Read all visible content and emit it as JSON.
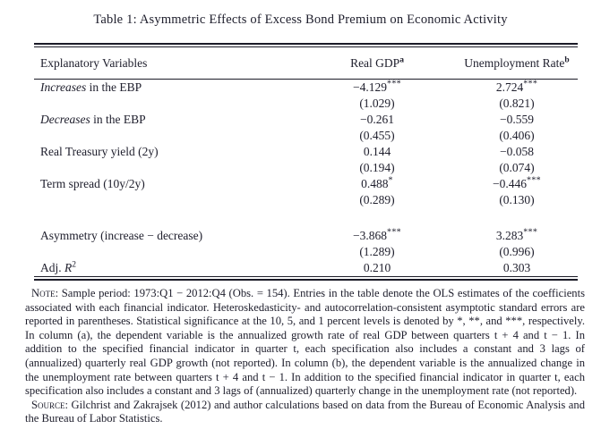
{
  "title": "Table 1: Asymmetric Effects of Excess Bond Premium on Economic Activity",
  "accent_colors": {
    "text": "#20202e",
    "rule": "#1b1b27",
    "background": "#ffffff"
  },
  "table": {
    "header": {
      "col0": "Explanatory Variables",
      "col1": "Real GDP",
      "col1_sup": "a",
      "col2": "Unemployment Rate",
      "col2_sup": "b"
    },
    "rows": [
      {
        "pre": "",
        "em": "Increases",
        "post": " in the EBP",
        "sup": "",
        "gdp": "−4.129",
        "gdp_stars": "***",
        "unemp": "2.724",
        "unemp_stars": "***"
      },
      {
        "pre": "",
        "em": "",
        "post": "",
        "sup": "",
        "gdp": "(1.029)",
        "gdp_stars": "",
        "unemp": "(0.821)",
        "unemp_stars": ""
      },
      {
        "pre": "",
        "em": "Decreases",
        "post": " in the EBP",
        "sup": "",
        "gdp": "−0.261",
        "gdp_stars": "",
        "unemp": "−0.559",
        "unemp_stars": ""
      },
      {
        "pre": "",
        "em": "",
        "post": "",
        "sup": "",
        "gdp": "(0.455)",
        "gdp_stars": "",
        "unemp": "(0.406)",
        "unemp_stars": ""
      },
      {
        "pre": "Real Treasury yield (2y)",
        "em": "",
        "post": "",
        "sup": "",
        "gdp": "0.144",
        "gdp_stars": "",
        "unemp": "−0.058",
        "unemp_stars": ""
      },
      {
        "pre": "",
        "em": "",
        "post": "",
        "sup": "",
        "gdp": "(0.194)",
        "gdp_stars": "",
        "unemp": "(0.074)",
        "unemp_stars": ""
      },
      {
        "pre": "Term spread (10y/2y)",
        "em": "",
        "post": "",
        "sup": "",
        "gdp": "0.488",
        "gdp_stars": "*",
        "unemp": "−0.446",
        "unemp_stars": "***"
      },
      {
        "pre": "",
        "em": "",
        "post": "",
        "sup": "",
        "gdp": "(0.289)",
        "gdp_stars": "",
        "unemp": "(0.130)",
        "unemp_stars": ""
      },
      {
        "pre": "Asymmetry (increase − decrease)",
        "em": "",
        "post": "",
        "sup": "",
        "gdp": "−3.868",
        "gdp_stars": "***",
        "unemp": "3.283",
        "unemp_stars": "***"
      },
      {
        "pre": "",
        "em": "",
        "post": "",
        "sup": "",
        "gdp": "(1.289)",
        "gdp_stars": "",
        "unemp": "(0.996)",
        "unemp_stars": ""
      },
      {
        "pre": "Adj. ",
        "em": "R",
        "post": "",
        "sup": "2",
        "gdp": "0.210",
        "gdp_stars": "",
        "unemp": "0.303",
        "unemp_stars": ""
      }
    ]
  },
  "notes": {
    "note_label": "Note:",
    "note_text": " Sample period: 1973:Q1 − 2012:Q4 (Obs. = 154). Entries in the table denote the OLS estimates of the coefficients associated with each financial indicator. Heteroskedasticity- and autocorrelation-consistent asymptotic standard errors are reported in parentheses. Statistical significance at the 10, 5, and 1 percent levels is denoted by *, **, and ***, respectively. In column (a), the dependent variable is the annualized growth rate of real GDP between quarters t + 4 and t − 1. In addition to the specified financial indicator in quarter t, each specification also includes a constant and 3 lags of (annualized) quarterly real GDP growth (not reported). In column (b), the dependent variable is the annualized change in the unemployment rate between quarters t + 4 and t − 1. In addition to the specified financial indicator in quarter t, each specification also includes a constant and 3 lags of (annualized) quarterly change in the unemployment rate (not reported).",
    "source_label": "Source:",
    "source_text": " Gilchrist and Zakrajsek (2012) and author calculations based on data from the Bureau of Economic Analysis and the Bureau of Labor Statistics."
  }
}
